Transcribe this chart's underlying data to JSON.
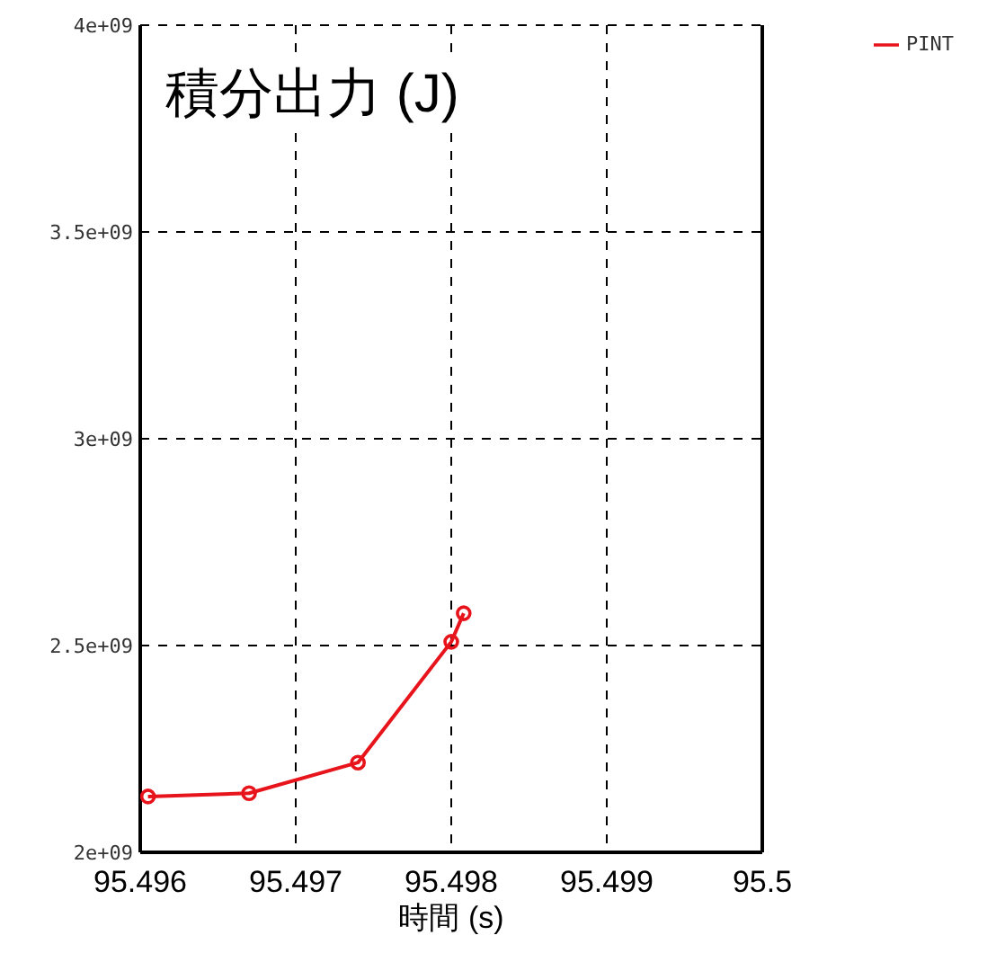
{
  "chart_data": {
    "type": "line",
    "title": "積分出力 (J)",
    "xlabel": "時間 (s)",
    "series": [
      {
        "name": "PINT",
        "color": "#e8141c",
        "x": [
          95.49605,
          95.4967,
          95.4974,
          95.498,
          95.49808
        ],
        "values": [
          2135000000,
          2143000000,
          2217000000,
          2509000000,
          2578000000
        ]
      }
    ],
    "xlim": [
      95.496,
      95.5
    ],
    "xticks": [
      95.496,
      95.497,
      95.498,
      95.499,
      95.5
    ],
    "ylim": [
      2000000000,
      4000000000
    ],
    "yticks": [
      {
        "value": 2000000000,
        "label": "2e+09"
      },
      {
        "value": 2500000000,
        "label": "2.5e+09"
      },
      {
        "value": 3000000000,
        "label": "3e+09"
      },
      {
        "value": 3500000000,
        "label": "3.5e+09"
      },
      {
        "value": 4000000000,
        "label": "4e+09"
      }
    ],
    "grid": true,
    "legend": "top right",
    "marker": "circle",
    "line_style": "solid"
  }
}
